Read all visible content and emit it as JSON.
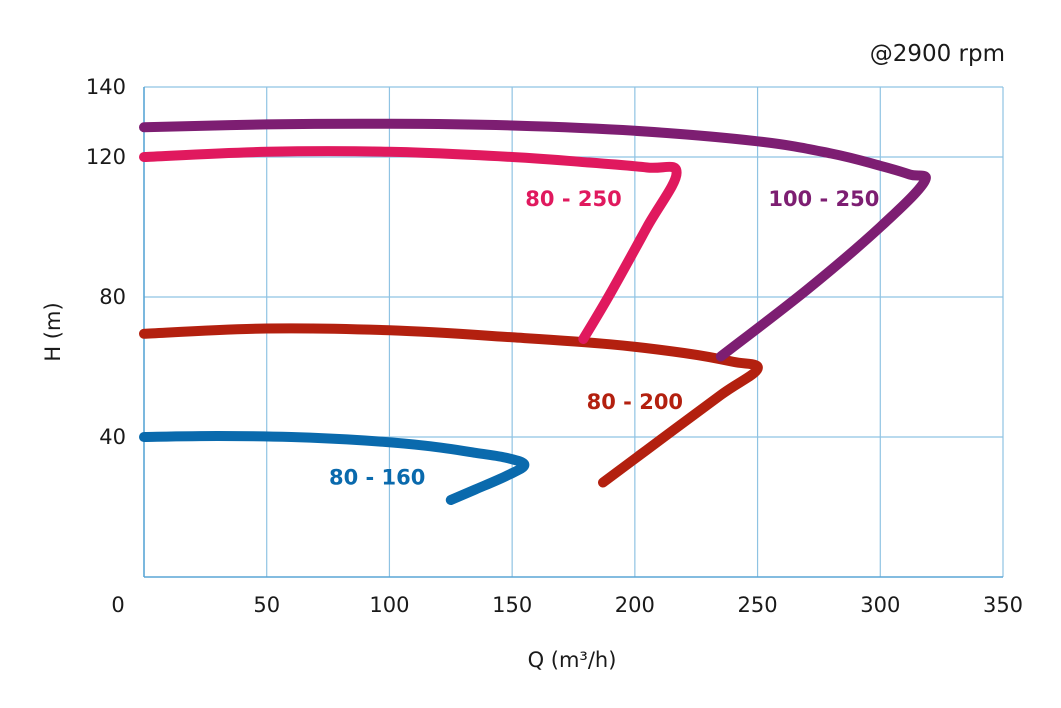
{
  "chart_data": {
    "type": "line",
    "title": "",
    "annotation": "@2900 rpm",
    "xlabel": "Q (m³/h)",
    "ylabel": "H (m)",
    "xlim": [
      0,
      350
    ],
    "ylim": [
      0,
      140
    ],
    "x_ticks": [
      "0",
      "50",
      "100",
      "150",
      "200",
      "250",
      "300",
      "350"
    ],
    "y_ticks": [
      "40",
      "80",
      "120",
      "140"
    ],
    "grid": true,
    "series": [
      {
        "name": "80 - 160",
        "color": "#0a6aad",
        "points": [
          [
            0,
            40
          ],
          [
            30,
            40.3
          ],
          [
            60,
            40
          ],
          [
            90,
            39
          ],
          [
            115,
            37.5
          ],
          [
            135,
            35.5
          ],
          [
            148,
            34
          ],
          [
            155,
            32
          ],
          [
            148,
            29
          ],
          [
            135,
            25
          ],
          [
            125,
            22
          ]
        ]
      },
      {
        "name": "80 - 200",
        "color": "#b3200f",
        "points": [
          [
            0,
            69.5
          ],
          [
            50,
            71
          ],
          [
            100,
            70.5
          ],
          [
            150,
            68.5
          ],
          [
            190,
            66.5
          ],
          [
            220,
            64
          ],
          [
            240,
            61.5
          ],
          [
            250,
            59.5
          ],
          [
            235,
            52
          ],
          [
            210,
            39
          ],
          [
            187,
            27
          ]
        ]
      },
      {
        "name": "80 - 250",
        "color": "#e0195e",
        "points": [
          [
            0,
            120
          ],
          [
            50,
            121.5
          ],
          [
            100,
            121.5
          ],
          [
            150,
            120
          ],
          [
            180,
            118.5
          ],
          [
            205,
            117
          ],
          [
            217,
            115.5
          ],
          [
            205,
            100
          ],
          [
            190,
            81
          ],
          [
            179,
            68
          ]
        ]
      },
      {
        "name": "100 - 250",
        "color": "#7d1e72",
        "points": [
          [
            0,
            128.5
          ],
          [
            50,
            129.3
          ],
          [
            100,
            129.5
          ],
          [
            150,
            129
          ],
          [
            200,
            127.5
          ],
          [
            250,
            124.5
          ],
          [
            280,
            121
          ],
          [
            300,
            117.5
          ],
          [
            312,
            115
          ],
          [
            318,
            113
          ],
          [
            300,
            100
          ],
          [
            270,
            82
          ],
          [
            235,
            63
          ]
        ]
      }
    ],
    "labels": [
      {
        "text": "80 - 160",
        "x": 95,
        "y": 28.5,
        "color": "#0a6aad"
      },
      {
        "text": "80 - 200",
        "x": 200,
        "y": 50,
        "color": "#b3200f"
      },
      {
        "text": "80 - 250",
        "x": 175,
        "y": 108,
        "color": "#e0195e"
      },
      {
        "text": "100 - 250",
        "x": 277,
        "y": 108,
        "color": "#7d1e72"
      }
    ]
  }
}
